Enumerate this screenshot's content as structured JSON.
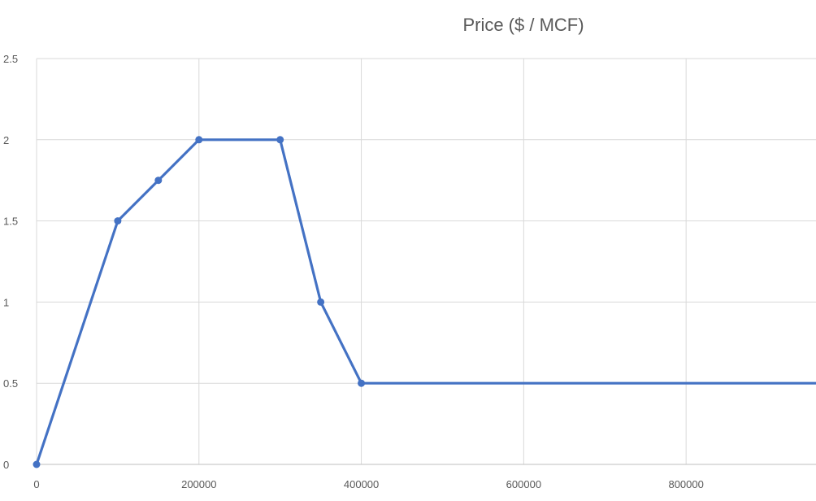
{
  "chart_data": {
    "type": "line",
    "title": "Price ($ / MCF)",
    "xlabel": "",
    "ylabel": "",
    "xlim": [
      0,
      960000
    ],
    "ylim": [
      0,
      2.5
    ],
    "x_ticks": [
      0,
      200000,
      400000,
      600000,
      800000
    ],
    "x_tick_labels": [
      "0",
      "200000",
      "400000",
      "600000",
      "800000"
    ],
    "y_ticks": [
      0,
      0.5,
      1,
      1.5,
      2,
      2.5
    ],
    "y_tick_labels": [
      "0",
      "0.5",
      "1",
      "1.5",
      "2",
      "2.5"
    ],
    "grid": true,
    "legend": "none",
    "series": [
      {
        "name": "",
        "color": "#4472C4",
        "points": [
          {
            "x": 0,
            "y": 0,
            "marker": true
          },
          {
            "x": 100000,
            "y": 1.5,
            "marker": true
          },
          {
            "x": 150000,
            "y": 1.75,
            "marker": true
          },
          {
            "x": 200000,
            "y": 2.0,
            "marker": true
          },
          {
            "x": 300000,
            "y": 2.0,
            "marker": true
          },
          {
            "x": 350000,
            "y": 1.0,
            "marker": true
          },
          {
            "x": 400000,
            "y": 0.5,
            "marker": true
          },
          {
            "x": 960000,
            "y": 0.5,
            "marker": false
          }
        ]
      }
    ]
  }
}
